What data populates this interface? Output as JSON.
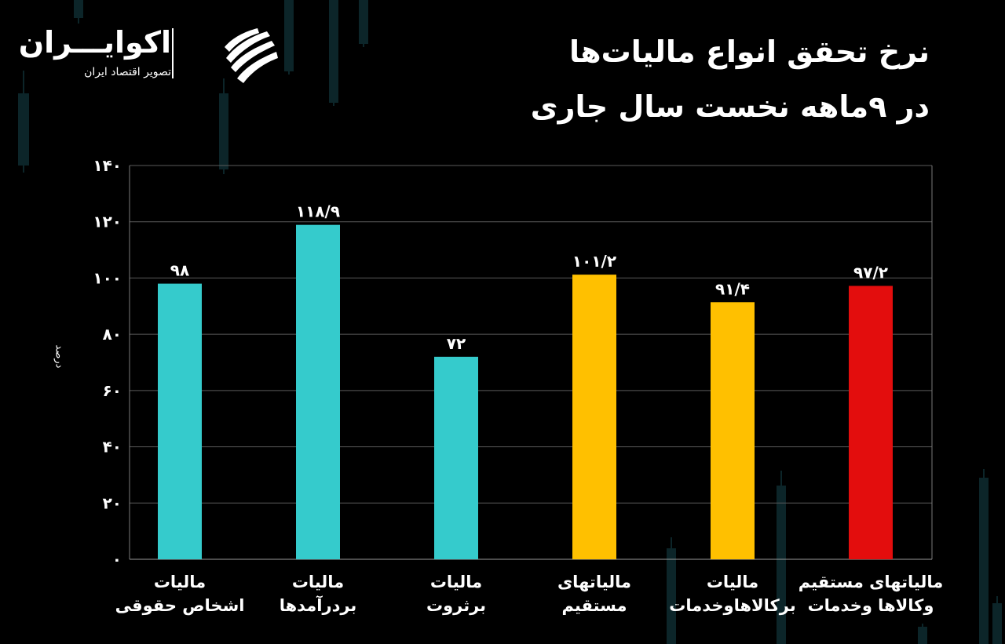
{
  "title": [
    "نرخ تحقق انواع مالیات‌ها",
    "در ۹ماهه نخست سال جاری"
  ],
  "logo": {
    "name": "اکوایـــران",
    "tagline": "تصویر اقتصاد ایران",
    "mark": "ecoiran-logo-icon"
  },
  "colors": {
    "background": "#000000",
    "teal": "#35CBCC",
    "yellow": "#FFC000",
    "red": "#E30D0D",
    "grid": "#5a5a5a",
    "text": "#ffffff"
  },
  "chart_data": {
    "type": "bar",
    "ylabel": "درصد",
    "ylim": [
      0,
      140
    ],
    "yticks": [
      0,
      20,
      40,
      60,
      80,
      100,
      120,
      140
    ],
    "ytick_labels": [
      "۰",
      "۲۰",
      "۴۰",
      "۶۰",
      "۸۰",
      "۱۰۰",
      "۱۲۰",
      "۱۴۰"
    ],
    "grid": true,
    "categories": [
      [
        "مالیات",
        "اشخاص حقوقی"
      ],
      [
        "مالیات",
        "بردرآمدها"
      ],
      [
        "مالیات",
        "برثروت"
      ],
      [
        "مالیاتهای",
        "مستقیم"
      ],
      [
        "مالیات",
        "برکالاهاوخدمات"
      ],
      [
        "مالیاتهای مستقیم",
        "وکالاها وخدمات"
      ]
    ],
    "values": [
      98,
      118.9,
      72,
      101.2,
      91.4,
      97.2
    ],
    "value_labels": [
      "۹۸",
      "۱۱۸/۹",
      "۷۲",
      "۱۰۱/۲",
      "۹۱/۴",
      "۹۷/۲"
    ],
    "bar_colors": [
      "#35CBCC",
      "#35CBCC",
      "#35CBCC",
      "#FFC000",
      "#FFC000",
      "#E30D0D"
    ]
  }
}
